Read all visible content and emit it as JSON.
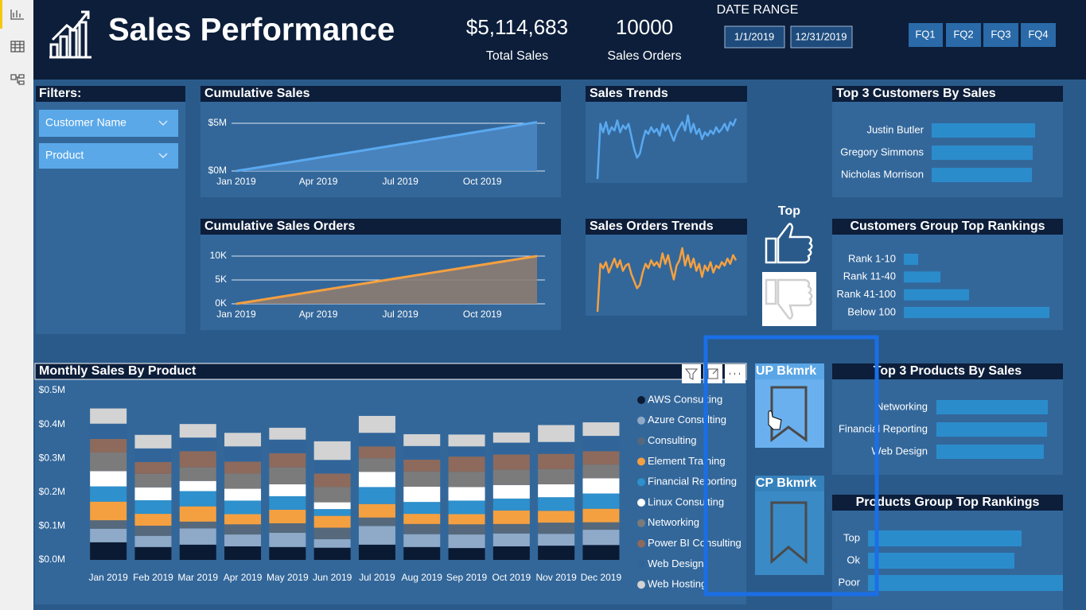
{
  "header": {
    "title": "Sales Performance",
    "total_sales": "$5,114,683",
    "total_sales_label": "Total Sales",
    "sales_orders": "10000",
    "sales_orders_label": "Sales Orders",
    "date_range_label": "DATE RANGE",
    "date_start": "1/1/2019",
    "date_end": "12/31/2019",
    "quarters": [
      "FQ1",
      "FQ2",
      "FQ3",
      "FQ4"
    ]
  },
  "filters": {
    "title": "Filters:",
    "items": [
      "Customer Name",
      "Product"
    ]
  },
  "toggle": {
    "label": "Top"
  },
  "bookmarks": [
    "UP Bkmrk",
    "CP Bkmrk"
  ],
  "chart_data": [
    {
      "type": "area",
      "title": "Cumulative Sales",
      "categories": [
        "Jan 2019",
        null,
        null,
        "Apr 2019",
        null,
        null,
        "Jul 2019",
        null,
        null,
        "Oct 2019",
        null,
        null
      ],
      "values": [
        0,
        465000,
        930000,
        1395000,
        1860000,
        2325000,
        2790000,
        3255000,
        3720000,
        4185000,
        4650000,
        5114683
      ],
      "color": "#5aa9f0",
      "fill_color": "#4a86c2",
      "ylim": [
        0,
        5000000
      ],
      "yticks": [
        {
          "value": 0,
          "label": "$0M"
        },
        {
          "value": 5000000,
          "label": "$5M"
        }
      ],
      "grid": true
    },
    {
      "type": "area",
      "title": "Cumulative Sales Orders",
      "categories": [
        "Jan 2019",
        null,
        null,
        "Apr 2019",
        null,
        null,
        "Jul 2019",
        null,
        null,
        "Oct 2019",
        null,
        null
      ],
      "values": [
        0,
        909,
        1818,
        2727,
        3636,
        4545,
        5455,
        6364,
        7273,
        8182,
        9091,
        10000
      ],
      "color": "#f5a040",
      "fill_color": "#8c7c72",
      "ylim": [
        0,
        10000
      ],
      "yticks": [
        {
          "value": 0,
          "label": "0K"
        },
        {
          "value": 5000,
          "label": "5K"
        },
        {
          "value": 10000,
          "label": "10K"
        }
      ],
      "grid": true
    },
    {
      "type": "sparkline",
      "title": "Sales Trends",
      "color": "#5aa9f0",
      "values": [
        5,
        70,
        60,
        72,
        58,
        66,
        62,
        74,
        60,
        68,
        64,
        70,
        55,
        40,
        30,
        35,
        50,
        62,
        58,
        66,
        60,
        64,
        56,
        70,
        62,
        68,
        58,
        50,
        60,
        66,
        72,
        62,
        80,
        60,
        70,
        58,
        64,
        52,
        60,
        56,
        62,
        58,
        66,
        60,
        64,
        70,
        62,
        72,
        68,
        76
      ]
    },
    {
      "type": "sparkline",
      "title": "Sales Orders Trends",
      "color": "#f5a040",
      "values": [
        5,
        60,
        55,
        62,
        50,
        58,
        66,
        56,
        64,
        52,
        58,
        60,
        48,
        40,
        32,
        36,
        50,
        60,
        55,
        64,
        58,
        62,
        56,
        72,
        60,
        70,
        55,
        42,
        58,
        64,
        78,
        58,
        70,
        56,
        66,
        52,
        60,
        45,
        58,
        52,
        62,
        50,
        58,
        55,
        62,
        58,
        66,
        60,
        70,
        64
      ]
    },
    {
      "type": "hbar",
      "title": "Top 3 Customers By Sales",
      "color": "#2b8ccc",
      "categories": [
        "Justin Butler",
        "Gregory Simmons",
        "Nicholas Morrison"
      ],
      "values": [
        130,
        127,
        126
      ]
    },
    {
      "type": "hbar",
      "title": "Customers Group Top Rankings",
      "color": "#2b8ccc",
      "categories": [
        "Rank 1-10",
        "Rank 11-40",
        "Rank 41-100",
        "Below 100"
      ],
      "values": [
        18,
        46,
        82,
        183
      ]
    },
    {
      "type": "stacked_bar",
      "title": "Monthly Sales By Product",
      "categories": [
        "Jan 2019",
        "Feb 2019",
        "Mar 2019",
        "Apr 2019",
        "May 2019",
        "Jun 2019",
        "Jul 2019",
        "Aug 2019",
        "Sep 2019",
        "Oct 2019",
        "Nov 2019",
        "Dec 2019"
      ],
      "ylim": [
        0,
        500000
      ],
      "yticks": [
        {
          "value": 0,
          "label": "$0.0M"
        },
        {
          "value": 100000,
          "label": "$0.1M"
        },
        {
          "value": 200000,
          "label": "$0.2M"
        },
        {
          "value": 300000,
          "label": "$0.3M"
        },
        {
          "value": 400000,
          "label": "$0.4M"
        },
        {
          "value": 500000,
          "label": "$0.5M"
        }
      ],
      "series": [
        {
          "name": "AWS Consulting",
          "color": "#0b1a33",
          "values": [
            52000,
            38000,
            45000,
            40000,
            38000,
            36000,
            45000,
            38000,
            35000,
            40000,
            42000,
            44000
          ]
        },
        {
          "name": "Azure Consulting",
          "color": "#8fa9c8",
          "values": [
            40000,
            33000,
            48000,
            35000,
            42000,
            25000,
            55000,
            38000,
            40000,
            38000,
            35000,
            45000
          ]
        },
        {
          "name": "Consulting",
          "color": "#56697c",
          "values": [
            25000,
            30000,
            20000,
            30000,
            28000,
            34000,
            25000,
            30000,
            30000,
            28000,
            33000,
            22000
          ]
        },
        {
          "name": "Element Training",
          "color": "#f5a040",
          "values": [
            55000,
            35000,
            45000,
            30000,
            40000,
            35000,
            40000,
            30000,
            30000,
            40000,
            35000,
            40000
          ]
        },
        {
          "name": "Financial Reporting",
          "color": "#2e90cc",
          "values": [
            45000,
            40000,
            45000,
            40000,
            40000,
            20000,
            50000,
            35000,
            40000,
            35000,
            40000,
            45000
          ]
        },
        {
          "name": "Linux Consulting",
          "color": "#ffffff",
          "values": [
            45000,
            38000,
            30000,
            35000,
            35000,
            20000,
            45000,
            45000,
            40000,
            40000,
            38000,
            45000
          ]
        },
        {
          "name": "Networking",
          "color": "#7b7b7b",
          "values": [
            55000,
            40000,
            40000,
            45000,
            50000,
            45000,
            40000,
            45000,
            45000,
            45000,
            45000,
            40000
          ]
        },
        {
          "name": "Power BI Consulting",
          "color": "#8d6a5c",
          "values": [
            40000,
            35000,
            48000,
            35000,
            42000,
            40000,
            35000,
            35000,
            45000,
            45000,
            45000,
            40000
          ]
        },
        {
          "name": "Web Design",
          "color": "#31659a",
          "values": [
            45000,
            40000,
            40000,
            45000,
            40000,
            40000,
            40000,
            40000,
            30000,
            35000,
            35000,
            45000
          ]
        },
        {
          "name": "Web Hosting",
          "color": "#d3d3d3",
          "values": [
            45000,
            40000,
            40000,
            40000,
            35000,
            55000,
            50000,
            35000,
            35000,
            30000,
            50000,
            40000
          ]
        }
      ]
    },
    {
      "type": "hbar",
      "title": "Top 3 Products By Sales",
      "color": "#2b8ccc",
      "categories": [
        "Networking",
        "Financial Reporting",
        "Web Design"
      ],
      "values": [
        140,
        139,
        135
      ]
    },
    {
      "type": "hbar",
      "title": "Products Group Top Rankings",
      "color": "#2b8ccc",
      "categories": [
        "Top",
        "Ok",
        "Poor"
      ],
      "values": [
        193,
        184,
        245
      ]
    }
  ]
}
